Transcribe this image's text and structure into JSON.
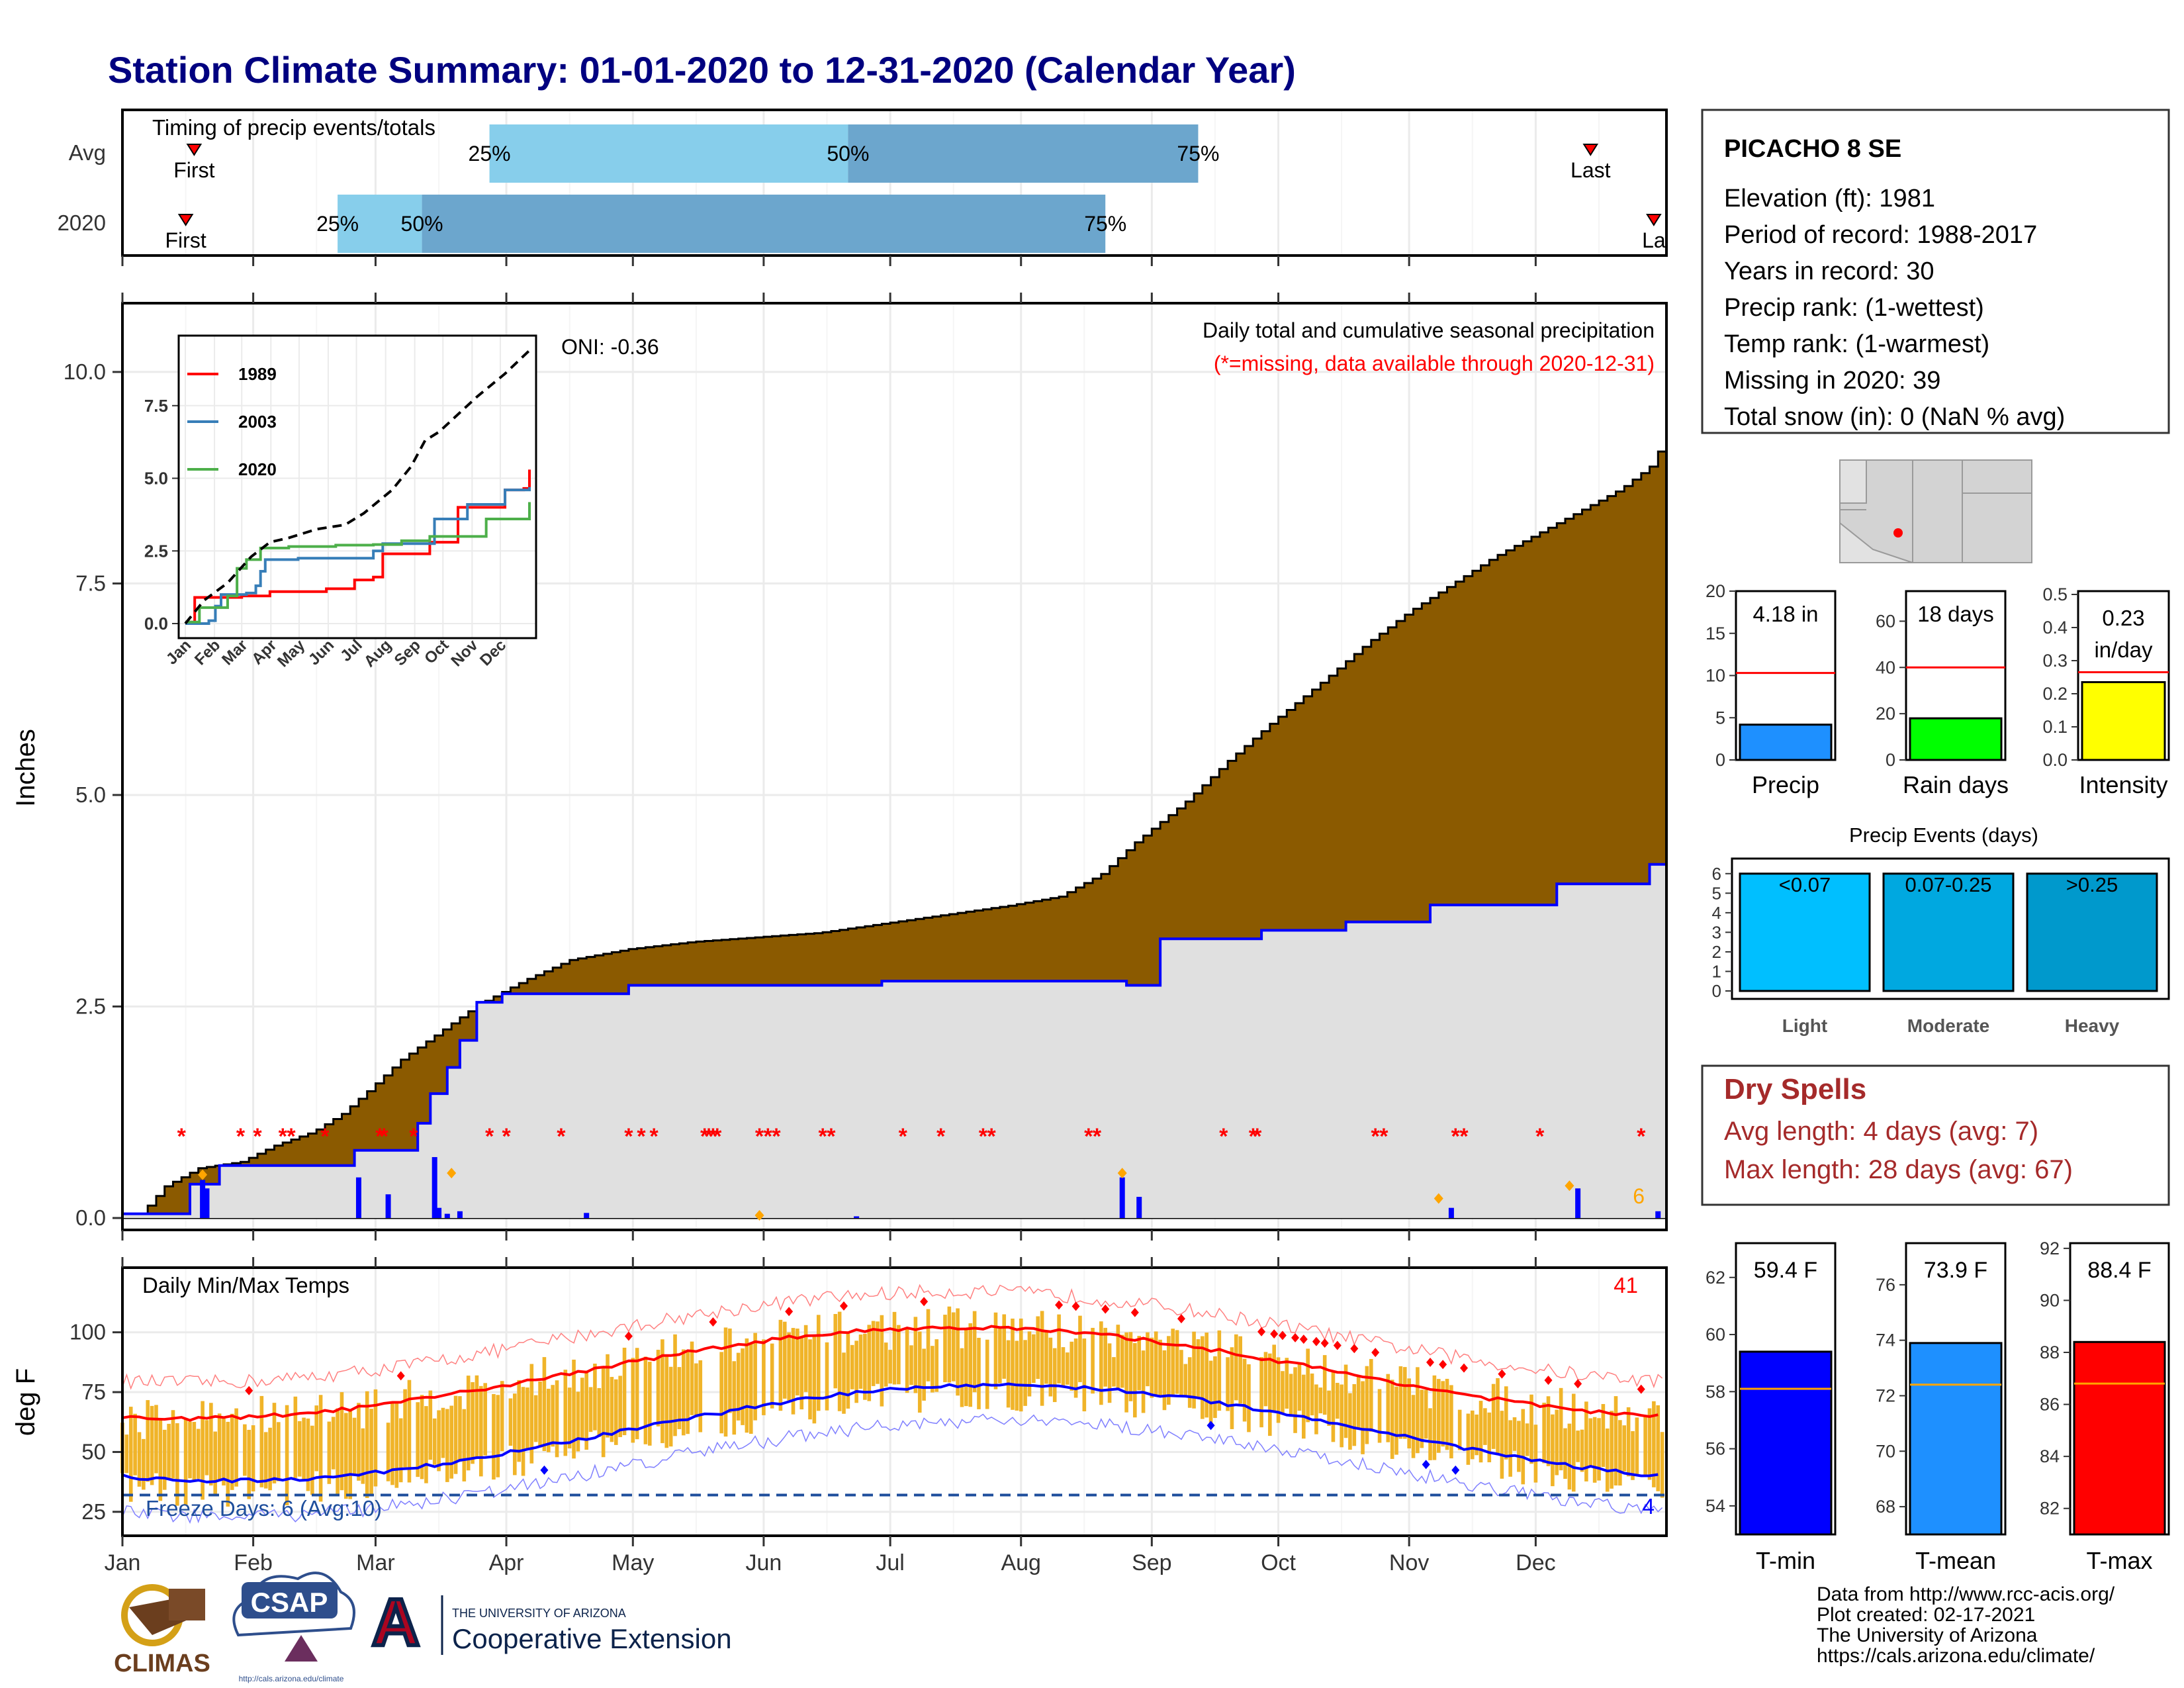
{
  "title": "Station Climate Summary: 01-01-2020 to 12-31-2020 (Calendar Year)",
  "colors": {
    "title": "#000080",
    "cum_fill": "#8B5A00",
    "avg_fill": "#E0E0E0",
    "avg_line": "#0000FF",
    "missing": "#FF0000",
    "tmax": "#FF0000",
    "tmin": "#0000FF",
    "range": "#F0B429",
    "bar_light": "#87CEEB",
    "bar_dark": "#6CA6CD",
    "precip": "#1E90FF",
    "raindays": "#00FF00",
    "intensity": "#FFFF00",
    "events_light": "#00BFFF",
    "events_moderate": "#00A8E0",
    "events_heavy": "#0099CC",
    "dryspell": "#A52A2A",
    "tmin_bar": "#0000FF",
    "tmean_bar": "#1E90FF",
    "tmax_bar": "#FF0000",
    "avg_marker": "#FFA500"
  },
  "timing": {
    "title": "Timing of precip events/totals",
    "rows": [
      {
        "label": "Avg",
        "first_label": "First",
        "last_label": "Last",
        "first_day": 17,
        "last_day": 348,
        "p25_day": 87,
        "p50_day": 172,
        "p75_day": 255,
        "p25_label": "25%",
        "p50_label": "50%",
        "p75_label": "75%"
      },
      {
        "label": "2020",
        "first_label": "First",
        "last_label": "La",
        "first_day": 15,
        "last_day": 363,
        "p25_day": 51,
        "p50_day": 71,
        "p75_day": 233,
        "p25_label": "25%",
        "p50_label": "50%",
        "p75_label": "75%"
      }
    ]
  },
  "precip_panel": {
    "ylabel": "Inches",
    "y_ticks": [
      "0.0",
      "2.5",
      "5.0",
      "7.5",
      "10.0"
    ],
    "ylim": [
      0,
      10.5
    ],
    "note1": "Daily total and cumulative seasonal precipitation",
    "note2": "(*=missing, data available through 2020-12-31)",
    "oni": "ONI: -0.36",
    "count_label": "6"
  },
  "inset": {
    "y_ticks": [
      "0.0",
      "2.5",
      "5.0",
      "7.5"
    ],
    "months": [
      "Jan",
      "Feb",
      "Mar",
      "Apr",
      "May",
      "Jun",
      "Jul",
      "Aug",
      "Sep",
      "Oct",
      "Nov",
      "Dec"
    ],
    "legend": [
      "1989",
      "2003",
      "2020"
    ],
    "legend_colors": [
      "#FF0000",
      "#377EB8",
      "#4DAF4A"
    ]
  },
  "temp_panel": {
    "ylabel": "deg F",
    "title": "Daily Min/Max Temps",
    "y_ticks": [
      "25",
      "50",
      "75",
      "100"
    ],
    "ylim": [
      15,
      127
    ],
    "freeze_label": "Freeze Days: 6 (Avg:10)",
    "freeze_value": 32,
    "hot_count": "41",
    "cold_count": "4"
  },
  "months": [
    "Jan",
    "Feb",
    "Mar",
    "Apr",
    "May",
    "Jun",
    "Jul",
    "Aug",
    "Sep",
    "Oct",
    "Nov",
    "Dec"
  ],
  "station": {
    "name": "PICACHO 8 SE",
    "lines": [
      "Elevation (ft): 1981",
      "Period of record: 1988-2017",
      "Years in record: 30",
      "Precip rank:  (1-wettest)",
      "Temp rank:  (1-warmest)",
      "Missing in 2020: 39",
      "Total snow (in): 0 (NaN % avg)"
    ]
  },
  "mini_bars": [
    {
      "label": "Precip",
      "value_label": "4.18 in",
      "ticks": [
        "0",
        "5",
        "10",
        "15",
        "20"
      ],
      "ylim": [
        0,
        20
      ],
      "value": 4.18,
      "avg": 10.3
    },
    {
      "label": "Rain days",
      "value_label": "18 days",
      "ticks": [
        "0",
        "20",
        "40",
        "60"
      ],
      "ylim": [
        0,
        73
      ],
      "value": 18,
      "avg": 40
    },
    {
      "label": "Intensity",
      "value_label_1": "0.23",
      "value_label_2": "in/day",
      "ticks": [
        "0.0",
        "0.1",
        "0.2",
        "0.3",
        "0.4",
        "0.5"
      ],
      "ylim": [
        0,
        0.51
      ],
      "value": 0.235,
      "avg": 0.265
    }
  ],
  "events": {
    "title": "Precip Events (days)",
    "ticks": [
      "0",
      "1",
      "2",
      "3",
      "4",
      "5",
      "6"
    ],
    "bars": [
      {
        "name": "Light",
        "label": "<0.07",
        "value": 6
      },
      {
        "name": "Moderate",
        "label": "0.07-0.25",
        "value": 6
      },
      {
        "name": "Heavy",
        "label": ">0.25",
        "value": 6
      }
    ]
  },
  "dry_spells": {
    "title": "Dry Spells",
    "avg_line": "Avg length: 4 days (avg: 7)",
    "max_line": "Max length: 28 days (avg: 67)"
  },
  "temp_bars": [
    {
      "label": "T-min",
      "value_label": "59.4 F",
      "ticks": [
        "54",
        "56",
        "58",
        "60",
        "62"
      ],
      "ylim": [
        53,
        63.2
      ],
      "value": 59.4,
      "avg": 58.1
    },
    {
      "label": "T-mean",
      "value_label": "73.9 F",
      "ticks": [
        "68",
        "70",
        "72",
        "74",
        "76"
      ],
      "ylim": [
        67,
        77.5
      ],
      "value": 73.9,
      "avg": 72.4
    },
    {
      "label": "T-max",
      "value_label": "88.4 F",
      "ticks": [
        "82",
        "84",
        "86",
        "88",
        "90",
        "92"
      ],
      "ylim": [
        81,
        92.2
      ],
      "value": 88.4,
      "avg": 86.8
    }
  ],
  "footer": {
    "lines": [
      "Data from http://www.rcc-acis.org/",
      "Plot created: 02-17-2021",
      "The University of Arizona",
      "https://cals.arizona.edu/climate/"
    ],
    "logo_climas": "CLIMAS",
    "logo_csap": "CSAP",
    "logo_csap_url": "http://cals.arizona.edu/climate",
    "ua_line1": "THE UNIVERSITY OF ARIZONA",
    "ua_line2": "Cooperative Extension",
    "ua_letter": "A"
  }
}
